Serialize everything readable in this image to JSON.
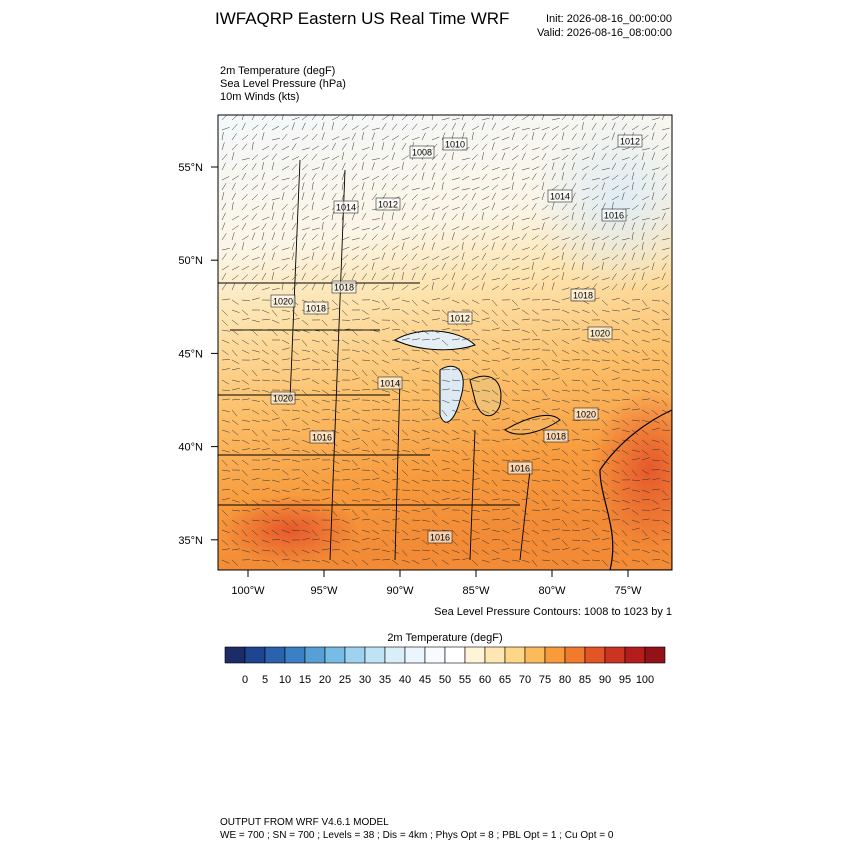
{
  "header": {
    "title": "IWFAQRP Eastern US Real Time WRF",
    "init": "Init: 2026-08-16_00:00:00",
    "valid": "Valid: 2026-08-16_08:00:00"
  },
  "fields": [
    "2m Temperature   (degF)",
    "Sea Level Pressure   (hPa)",
    "10m Winds   (kts)"
  ],
  "map": {
    "lat_labels": [
      "55°N",
      "50°N",
      "45°N",
      "40°N",
      "35°N"
    ],
    "lon_labels": [
      "100°W",
      "95°W",
      "90°W",
      "85°W",
      "80°W",
      "75°W"
    ],
    "contour_labels": [
      "1010",
      "1012",
      "1008",
      "1014",
      "1012",
      "1014",
      "1016",
      "1018",
      "1018",
      "1020",
      "1018",
      "1012",
      "1020",
      "1014",
      "1020",
      "1020",
      "1016",
      "1018",
      "1016",
      "1016"
    ]
  },
  "contour_note": "Sea Level Pressure Contours: 1008 to 1023 by 1",
  "colorbar": {
    "title": "2m Temperature  (degF)",
    "labels": [
      0,
      5,
      10,
      15,
      20,
      25,
      30,
      35,
      40,
      45,
      50,
      55,
      60,
      65,
      70,
      75,
      80,
      85,
      90,
      95,
      100
    ],
    "colors": [
      "#1b2c66",
      "#1d4590",
      "#2a62ad",
      "#3b80c4",
      "#56a0d6",
      "#77bce4",
      "#9dd3ef",
      "#bfe3f4",
      "#d9eef9",
      "#ebf6fc",
      "#f8fbfe",
      "#ffffff",
      "#fff3d8",
      "#fee7b2",
      "#fdd687",
      "#fcbb5a",
      "#f99b3a",
      "#f27a2c",
      "#e35426",
      "#cc3422",
      "#b31d1e",
      "#921218"
    ]
  },
  "footer": {
    "line1": "OUTPUT FROM WRF V4.6.1 MODEL",
    "line2": "WE = 700 ; SN = 700 ; Levels = 38 ; Dis = 4km ; Phys Opt = 8 ; PBL Opt = 1 ; Cu Opt = 0"
  }
}
